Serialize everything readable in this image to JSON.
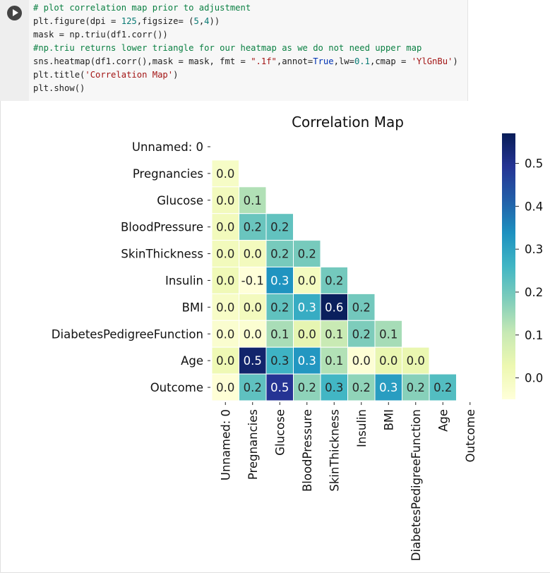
{
  "code_cell": {
    "lines": [
      [
        {
          "t": "# plot correlation map prior to adjustment",
          "c": "tk-c"
        }
      ],
      [
        {
          "t": "plt.figure(dpi = "
        },
        {
          "t": "125",
          "c": "tk-n"
        },
        {
          "t": ",figsize= ("
        },
        {
          "t": "5",
          "c": "tk-n"
        },
        {
          "t": ","
        },
        {
          "t": "4",
          "c": "tk-n"
        },
        {
          "t": "))"
        }
      ],
      [
        {
          "t": "mask = np.triu(df1.corr())"
        }
      ],
      [
        {
          "t": "#np.triu returns lower triangle for our heatmap as we do not need upper map",
          "c": "tk-c"
        }
      ],
      [
        {
          "t": "sns.heatmap(df1.corr(),mask = mask, fmt = "
        },
        {
          "t": "\".1f\"",
          "c": "tk-s"
        },
        {
          "t": ",annot="
        },
        {
          "t": "True",
          "c": "tk-k"
        },
        {
          "t": ",lw="
        },
        {
          "t": "0.1",
          "c": "tk-n"
        },
        {
          "t": ",cmap = "
        },
        {
          "t": "'YlGnBu'",
          "c": "tk-s"
        },
        {
          "t": ")"
        }
      ],
      [
        {
          "t": "plt.title("
        },
        {
          "t": "'Correlation Map'",
          "c": "tk-s"
        },
        {
          "t": ")"
        }
      ],
      [
        {
          "t": "plt.show()"
        }
      ]
    ]
  },
  "chart_data": {
    "type": "heatmap",
    "title": "Correlation Map",
    "labels": [
      "Unnamed: 0",
      "Pregnancies",
      "Glucose",
      "BloodPressure",
      "SkinThickness",
      "Insulin",
      "BMI",
      "DiabetesPedigreeFunction",
      "Age",
      "Outcome"
    ],
    "matrix": [
      [],
      [
        -0.0
      ],
      [
        0.0,
        0.1
      ],
      [
        0.0,
        0.2,
        0.2
      ],
      [
        0.0,
        0.0,
        0.2,
        0.2
      ],
      [
        0.0,
        -0.1,
        0.3,
        -0.0,
        0.2
      ],
      [
        -0.0,
        0.0,
        0.2,
        0.3,
        0.6,
        0.2
      ],
      [
        -0.0,
        -0.0,
        0.1,
        0.0,
        0.1,
        0.2,
        0.1
      ],
      [
        0.0,
        0.5,
        0.3,
        0.3,
        0.1,
        -0.0,
        0.0,
        0.0
      ],
      [
        -0.0,
        0.2,
        0.5,
        0.2,
        0.3,
        0.2,
        0.3,
        0.2,
        0.2
      ]
    ],
    "cell_values": [
      [],
      [
        -0.013
      ],
      [
        0.005,
        0.129
      ],
      [
        0.007,
        0.209,
        0.219
      ],
      [
        0.007,
        0.002,
        0.192,
        0.192
      ],
      [
        0.016,
        -0.055,
        0.331,
        -0.002,
        0.196
      ],
      [
        -0.016,
        0.002,
        0.221,
        0.281,
        0.564,
        0.198
      ],
      [
        -0.03,
        -0.034,
        0.137,
        0.041,
        0.101,
        0.185,
        0.141
      ],
      [
        0.02,
        0.544,
        0.267,
        0.325,
        0.128,
        -0.042,
        0.036,
        0.033
      ],
      [
        -0.044,
        0.222,
        0.493,
        0.166,
        0.259,
        0.164,
        0.312,
        0.174,
        0.238
      ]
    ],
    "colorbar": {
      "min": -0.05,
      "max": 0.57,
      "ticks": [
        "0.0",
        "0.1",
        "0.2",
        "0.3",
        "0.4",
        "0.5"
      ],
      "tick_values": [
        0.0,
        0.1,
        0.2,
        0.3,
        0.4,
        0.5
      ]
    },
    "cmap": "YlGnBu",
    "cmap_stops": [
      "#ffffd9",
      "#edf8b1",
      "#c7e9b4",
      "#7fcdbb",
      "#41b6c4",
      "#1d91c0",
      "#225ea8",
      "#253494",
      "#081d58"
    ]
  }
}
